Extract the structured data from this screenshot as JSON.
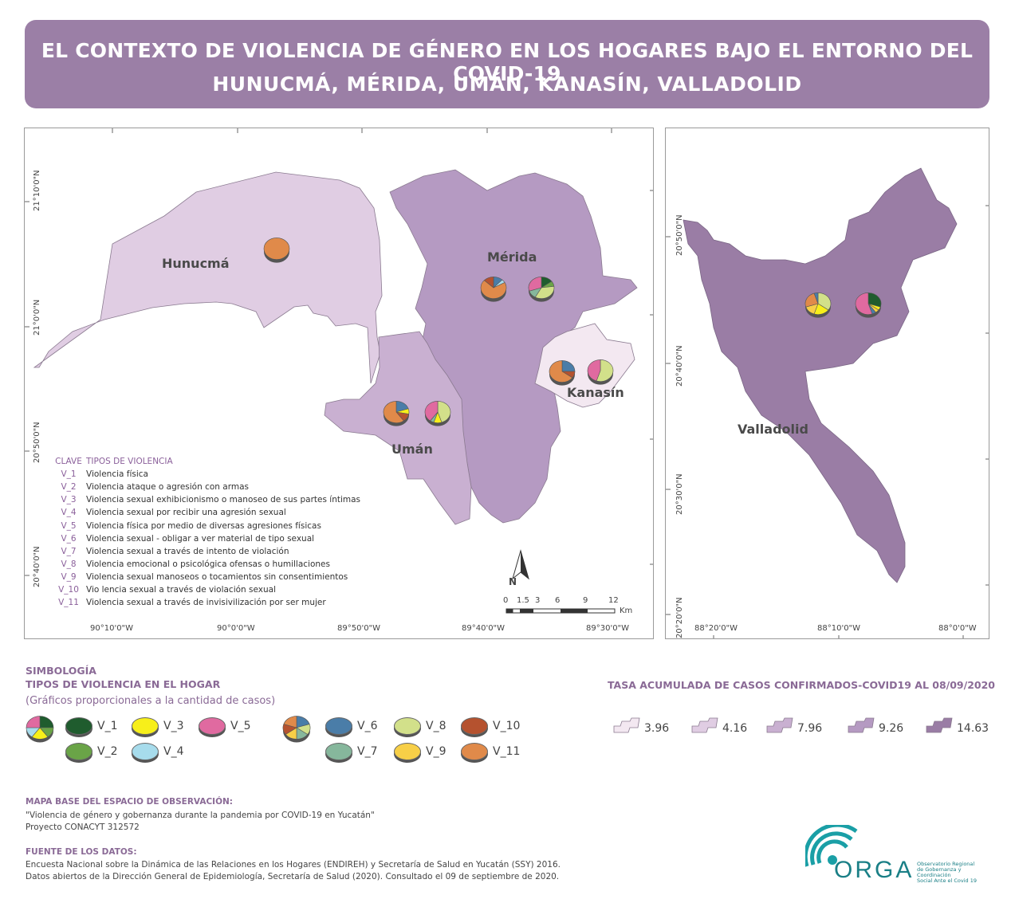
{
  "title": {
    "line1": "EL CONTEXTO DE VIOLENCIA DE GÉNERO EN LOS HOGARES BAJO EL ENTORNO DEL COVID-19",
    "line2": "HUNUCMÁ, MÉRIDA, UMÁN, KANASÍN, VALLADOLID"
  },
  "map_left": {
    "places": {
      "hunucma": "Hunucmá",
      "merida": "Mérida",
      "kanasin": "Kanasín",
      "uman": "Umán"
    },
    "lat_labels": [
      "21°10'0\"N",
      "21°0'0\"N",
      "20°50'0\"N",
      "20°40'0\"N"
    ],
    "lon_labels": [
      "90°10'0\"W",
      "90°0'0\"W",
      "89°50'0\"W",
      "89°40'0\"W",
      "89°30'0\"W"
    ],
    "north": "N",
    "scale_ticks": [
      "0",
      "1.5",
      "3",
      "6",
      "9",
      "12"
    ],
    "scale_unit": "Km",
    "legend": {
      "header_key": "CLAVE",
      "header_type": "TIPOS DE VIOLENCIA",
      "rows": [
        {
          "key": "V_1",
          "label": "Violencia física"
        },
        {
          "key": "V_2",
          "label": "Violencia ataque o agresión con armas"
        },
        {
          "key": "V_3",
          "label": "Violencia sexual exhibicionismo o manoseo de sus partes íntimas"
        },
        {
          "key": "V_4",
          "label": "Violencia sexual por recibir una agresión sexual"
        },
        {
          "key": "V_5",
          "label": "Violencia  física por medio de diversas agresiones físicas"
        },
        {
          "key": "V_6",
          "label": "Violencia sexual - obligar a ver material de tipo sexual"
        },
        {
          "key": "V_7",
          "label": "Violencia sexual a través de intento de violación"
        },
        {
          "key": "V_8",
          "label": "Violencia emocional o psicológica ofensas o humillaciones"
        },
        {
          "key": "V_9",
          "label": "Violencia sexual manoseos o tocamientos sin consentimientos"
        },
        {
          "key": "V_10",
          "label": "Vio lencia sexual a través de violación sexual"
        },
        {
          "key": "V_11",
          "label": "Violencia sexual a través de invisivilización por ser mujer"
        }
      ]
    }
  },
  "map_right": {
    "place": "Valladolid",
    "lat_labels": [
      "20°50'0\"N",
      "20°40'0\"N",
      "20°30'0\"N",
      "20°20'0\"N"
    ],
    "lon_labels": [
      "88°20'0\"W",
      "88°10'0\"W",
      "88°0'0\"W"
    ]
  },
  "symbology": {
    "title": "SIMBOLOGÍA",
    "subtitle": "TIPOS DE VIOLENCIA EN EL HOGAR",
    "note": "(Gráficos proporcionales a la cantidad de casos)",
    "items": [
      {
        "key": "V_1",
        "color": "#1f5c2e"
      },
      {
        "key": "V_2",
        "color": "#6aa447"
      },
      {
        "key": "V_3",
        "color": "#f7ef1a"
      },
      {
        "key": "V_4",
        "color": "#a7dcec"
      },
      {
        "key": "V_5",
        "color": "#e06aa0"
      },
      {
        "key": "V_6",
        "color": "#4a7da8"
      },
      {
        "key": "V_7",
        "color": "#86b79c"
      },
      {
        "key": "V_8",
        "color": "#d2e08a"
      },
      {
        "key": "V_9",
        "color": "#f7cf47"
      },
      {
        "key": "V_10",
        "color": "#b5522f"
      },
      {
        "key": "V_11",
        "color": "#e08a4a"
      }
    ]
  },
  "rates": {
    "title": "TASA ACUMULADA DE CASOS CONFIRMADOS-COVID19 AL 08/09/2020",
    "classes": [
      {
        "value": "3.96",
        "color": "#f3e8f1"
      },
      {
        "value": "4.16",
        "color": "#e0cde3"
      },
      {
        "value": "7.96",
        "color": "#c9b0d1"
      },
      {
        "value": "9.26",
        "color": "#b59ac2"
      },
      {
        "value": "14.63",
        "color": "#9a7da5"
      }
    ]
  },
  "footer": {
    "base_title": "MAPA BASE DEL ESPACIO DE OBSERVACIÓN:",
    "base_line1": "\"Violencia de género y gobernanza durante la pandemia por COVID-19 en Yucatán\"",
    "base_line2": "Proyecto CONACYT 312572",
    "source_title": "FUENTE DE LOS DATOS:",
    "source_line1": "Encuesta Nacional sobre la Dinámica de las Relaciones en los Hogares (ENDIREH) y Secretaría de Salud en Yucatán (SSY) 2016.",
    "source_line2": "Datos abiertos de la Dirección General de Epidemiología, Secretaría de  Salud (2020). Consultado el 09 de septiembre de 2020."
  },
  "logo": {
    "name": "ORGA",
    "line1": "Observatorio Regional",
    "line2": "de Gobernanza y Coordinación",
    "line3": "Social Ante el Covid 19"
  }
}
